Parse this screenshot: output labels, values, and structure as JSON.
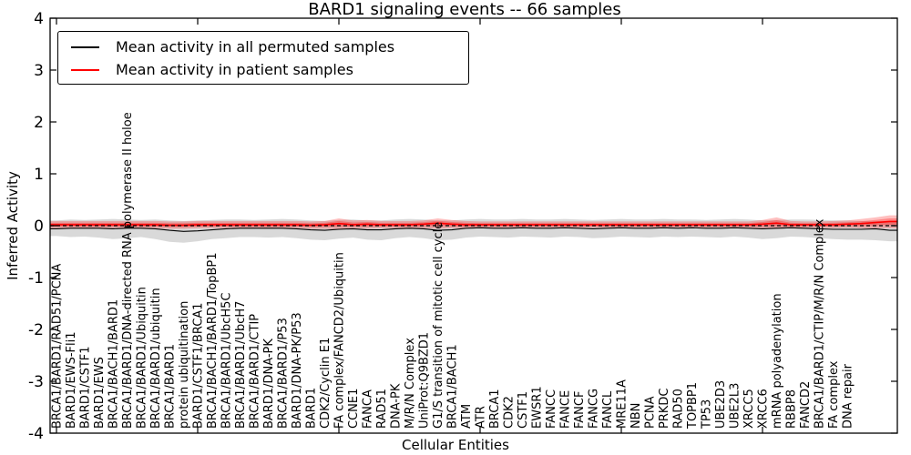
{
  "title": "BARD1 signaling events -- 66 samples",
  "legend": {
    "items": [
      {
        "label": "Mean activity in all permuted samples",
        "color": "#000000"
      },
      {
        "label": "Mean activity in patient samples",
        "color": "#ff0000"
      }
    ]
  },
  "chart_data": {
    "type": "line",
    "title": "BARD1 signaling events -- 66 samples",
    "xlabel": "Cellular Entities",
    "ylabel": "Inferred Activity",
    "ylim": [
      -4,
      4
    ],
    "yticks": [
      "4",
      "3",
      "2",
      "1",
      "0",
      "-1",
      "-2",
      "-3",
      "-4"
    ],
    "grid": false,
    "legend_position": "upper left",
    "reference_line": {
      "y": 0,
      "style": "dashed",
      "color": "#000000"
    },
    "categories": [
      "BRCA1/BARD1/RAD51/PCNA",
      "BARD1/EWS-Fli1",
      "BARD1/CSTF1",
      "BARD1/EWS",
      "BRCA1/BACH1/BARD1",
      "BRCA1/BARD1/DNA-directed RNA polymerase II holoe",
      "BRCA1/BARD1/Ubiquitin",
      "BRCA1/BARD1/ubiquitin",
      "BRCA1/BARD1",
      "protein ubiquitination",
      "BARD1/CSTF1/BRCA1",
      "BRCA1/BACH1/BARD1/TopBP1",
      "BRCA1/BARD1/UbcH5C",
      "BRCA1/BARD1/UbcH7",
      "BRCA1/BARD1/CTIP",
      "BARD1/DNA-PK",
      "BRCA1/BARD1/P53",
      "BARD1/DNA-PK/P53",
      "BARD1",
      "CDK2/Cyclin E1",
      "FA complex/FANCD2/Ubiquitin",
      "CCNE1",
      "FANCA",
      "RAD51",
      "DNA-PK",
      "M/R/N Complex",
      "UniProt:Q9BZD1",
      "G1/S transition of mitotic cell cycle",
      "BRCA1/BACH1",
      "ATM",
      "ATR",
      "BRCA1",
      "CDK2",
      "CSTF1",
      "EWSR1",
      "FANCC",
      "FANCE",
      "FANCF",
      "FANCG",
      "FANCL",
      "MRE11A",
      "NBN",
      "PCNA",
      "PRKDC",
      "RAD50",
      "TOPBP1",
      "TP53",
      "UBE2D3",
      "UBE2L3",
      "XRCC5",
      "XRCC6",
      "mRNA polyadenylation",
      "RBBP8",
      "FANCD2",
      "BRCA1/BARD1/CTIP/M/R/N Complex",
      "FA complex",
      "DNA repair"
    ],
    "n_points": 60,
    "points_note": "curves extend past the last labeled entity to the right axis edge; points 57-59 are unlabeled",
    "series": [
      {
        "name": "Mean activity in all permuted samples",
        "color": "#000000",
        "band_color": "rgba(0,0,0,0.15)",
        "values": [
          -0.06,
          -0.05,
          -0.05,
          -0.05,
          -0.06,
          -0.05,
          -0.05,
          -0.06,
          -0.09,
          -0.11,
          -0.1,
          -0.08,
          -0.06,
          -0.05,
          -0.05,
          -0.05,
          -0.05,
          -0.06,
          -0.08,
          -0.09,
          -0.07,
          -0.06,
          -0.08,
          -0.08,
          -0.06,
          -0.05,
          -0.06,
          -0.09,
          -0.08,
          -0.05,
          -0.04,
          -0.05,
          -0.05,
          -0.04,
          -0.05,
          -0.05,
          -0.04,
          -0.05,
          -0.06,
          -0.05,
          -0.04,
          -0.05,
          -0.05,
          -0.04,
          -0.05,
          -0.04,
          -0.05,
          -0.05,
          -0.04,
          -0.05,
          -0.06,
          -0.05,
          -0.04,
          -0.05,
          -0.06,
          -0.07,
          -0.07,
          -0.07,
          -0.06,
          -0.09
        ],
        "band_upper": [
          0.1,
          0.12,
          0.11,
          0.12,
          0.13,
          0.12,
          0.11,
          0.12,
          0.1,
          0.09,
          0.1,
          0.11,
          0.12,
          0.12,
          0.11,
          0.12,
          0.13,
          0.12,
          0.1,
          0.09,
          0.11,
          0.12,
          0.1,
          0.1,
          0.12,
          0.13,
          0.12,
          0.1,
          0.1,
          0.12,
          0.13,
          0.12,
          0.12,
          0.13,
          0.12,
          0.12,
          0.13,
          0.12,
          0.11,
          0.12,
          0.13,
          0.12,
          0.12,
          0.13,
          0.12,
          0.12,
          0.11,
          0.12,
          0.13,
          0.12,
          0.1,
          0.11,
          0.12,
          0.12,
          0.11,
          0.1,
          0.1,
          0.09,
          0.09,
          0.08
        ],
        "band_lower": [
          -0.2,
          -0.22,
          -0.21,
          -0.23,
          -0.26,
          -0.24,
          -0.22,
          -0.26,
          -0.31,
          -0.33,
          -0.3,
          -0.26,
          -0.24,
          -0.22,
          -0.22,
          -0.23,
          -0.22,
          -0.24,
          -0.27,
          -0.28,
          -0.25,
          -0.23,
          -0.27,
          -0.28,
          -0.24,
          -0.22,
          -0.24,
          -0.28,
          -0.27,
          -0.23,
          -0.21,
          -0.22,
          -0.23,
          -0.21,
          -0.22,
          -0.23,
          -0.21,
          -0.22,
          -0.24,
          -0.23,
          -0.21,
          -0.22,
          -0.23,
          -0.21,
          -0.22,
          -0.21,
          -0.22,
          -0.23,
          -0.21,
          -0.23,
          -0.26,
          -0.24,
          -0.21,
          -0.22,
          -0.24,
          -0.26,
          -0.27,
          -0.27,
          -0.28,
          -0.3
        ]
      },
      {
        "name": "Mean activity in patient samples",
        "color": "#ff0000",
        "band_color": "rgba(255,0,0,0.25)",
        "inner_band_color": "rgba(255,0,0,0.30)",
        "values": [
          0.02,
          0.02,
          0.02,
          0.02,
          0.02,
          0.02,
          0.02,
          0.02,
          0.01,
          0.01,
          0.02,
          0.02,
          0.02,
          0.02,
          0.02,
          0.02,
          0.02,
          0.02,
          0.01,
          0.02,
          0.04,
          0.02,
          0.03,
          0.02,
          0.02,
          0.02,
          0.03,
          0.05,
          0.03,
          0.02,
          0.02,
          0.02,
          0.02,
          0.02,
          0.02,
          0.02,
          0.02,
          0.02,
          0.02,
          0.02,
          0.02,
          0.02,
          0.02,
          0.02,
          0.02,
          0.02,
          0.02,
          0.02,
          0.02,
          0.02,
          0.03,
          0.05,
          0.02,
          0.02,
          0.02,
          0.02,
          0.03,
          0.04,
          0.06,
          0.08
        ],
        "band_upper": [
          0.09,
          0.09,
          0.09,
          0.09,
          0.09,
          0.09,
          0.09,
          0.09,
          0.08,
          0.08,
          0.09,
          0.09,
          0.09,
          0.09,
          0.09,
          0.09,
          0.09,
          0.09,
          0.08,
          0.09,
          0.14,
          0.1,
          0.11,
          0.09,
          0.09,
          0.09,
          0.1,
          0.14,
          0.11,
          0.09,
          0.08,
          0.08,
          0.08,
          0.08,
          0.08,
          0.08,
          0.08,
          0.08,
          0.08,
          0.08,
          0.08,
          0.08,
          0.08,
          0.08,
          0.08,
          0.08,
          0.08,
          0.08,
          0.08,
          0.08,
          0.11,
          0.16,
          0.09,
          0.08,
          0.08,
          0.09,
          0.1,
          0.13,
          0.16,
          0.2
        ],
        "band_lower": [
          -0.05,
          -0.05,
          -0.05,
          -0.05,
          -0.05,
          -0.05,
          -0.05,
          -0.05,
          -0.06,
          -0.06,
          -0.05,
          -0.05,
          -0.05,
          -0.05,
          -0.05,
          -0.05,
          -0.05,
          -0.05,
          -0.06,
          -0.06,
          -0.07,
          -0.05,
          -0.06,
          -0.05,
          -0.05,
          -0.05,
          -0.05,
          -0.06,
          -0.05,
          -0.05,
          -0.04,
          -0.04,
          -0.04,
          -0.04,
          -0.04,
          -0.04,
          -0.04,
          -0.04,
          -0.04,
          -0.04,
          -0.04,
          -0.04,
          -0.04,
          -0.04,
          -0.04,
          -0.04,
          -0.04,
          -0.04,
          -0.04,
          -0.04,
          -0.05,
          -0.06,
          -0.05,
          -0.04,
          -0.04,
          -0.05,
          -0.04,
          -0.05,
          -0.05,
          -0.05
        ]
      }
    ]
  }
}
